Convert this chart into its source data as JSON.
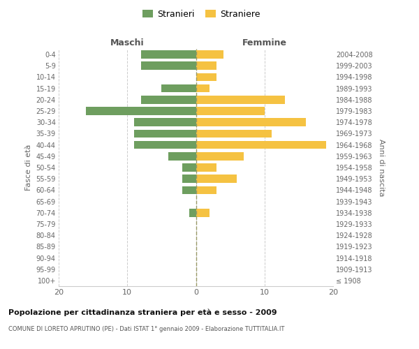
{
  "age_groups": [
    "100+",
    "95-99",
    "90-94",
    "85-89",
    "80-84",
    "75-79",
    "70-74",
    "65-69",
    "60-64",
    "55-59",
    "50-54",
    "45-49",
    "40-44",
    "35-39",
    "30-34",
    "25-29",
    "20-24",
    "15-19",
    "10-14",
    "5-9",
    "0-4"
  ],
  "birth_years": [
    "≤ 1908",
    "1909-1913",
    "1914-1918",
    "1919-1923",
    "1924-1928",
    "1929-1933",
    "1934-1938",
    "1939-1943",
    "1944-1948",
    "1949-1953",
    "1954-1958",
    "1959-1963",
    "1964-1968",
    "1969-1973",
    "1974-1978",
    "1979-1983",
    "1984-1988",
    "1989-1993",
    "1994-1998",
    "1999-2003",
    "2004-2008"
  ],
  "maschi": [
    0,
    0,
    0,
    0,
    0,
    0,
    1,
    0,
    2,
    2,
    2,
    4,
    9,
    9,
    9,
    16,
    8,
    5,
    0,
    8,
    8
  ],
  "femmine": [
    0,
    0,
    0,
    0,
    0,
    0,
    2,
    0,
    3,
    6,
    3,
    7,
    19,
    11,
    16,
    10,
    13,
    2,
    3,
    3,
    4
  ],
  "maschi_color": "#6e9e5f",
  "femmine_color": "#f5c242",
  "grid_color": "#cccccc",
  "center_line_color": "#999966",
  "title": "Popolazione per cittadinanza straniera per età e sesso - 2009",
  "subtitle": "COMUNE DI LORETO APRUTINO (PE) - Dati ISTAT 1° gennaio 2009 - Elaborazione TUTTITALIA.IT",
  "ylabel_left": "Fasce di età",
  "ylabel_right": "Anni di nascita",
  "legend_maschi": "Stranieri",
  "legend_femmine": "Straniere",
  "xlim": 20,
  "bar_height": 0.72,
  "header_maschi": "Maschi",
  "header_femmine": "Femmine"
}
